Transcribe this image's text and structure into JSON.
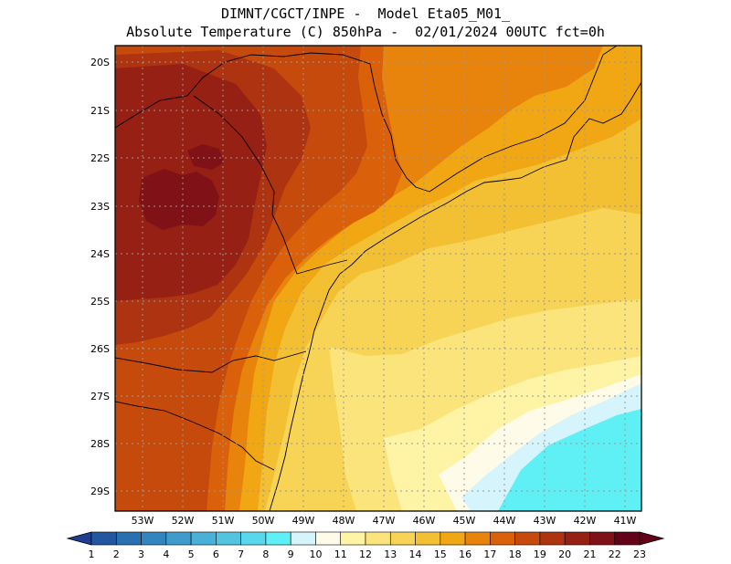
{
  "title": {
    "line1": "DIMNT/CGCT/INPE -  Model Eta05_M01_",
    "line2": "Absolute Temperature (C) 850hPa -  02/01/2024 00UTC fct=0h"
  },
  "lat_labels": [
    "20S",
    "21S",
    "22S",
    "23S",
    "24S",
    "25S",
    "26S",
    "27S",
    "28S",
    "29S"
  ],
  "lon_labels": [
    "53W",
    "52W",
    "51W",
    "50W",
    "49W",
    "48W",
    "47W",
    "46W",
    "45W",
    "44W",
    "43W",
    "42W",
    "41W"
  ],
  "colorbar": {
    "labels": [
      "1",
      "2",
      "3",
      "4",
      "5",
      "6",
      "7",
      "8",
      "9",
      "10",
      "11",
      "12",
      "13",
      "14",
      "15",
      "16",
      "17",
      "18",
      "19",
      "20",
      "21",
      "22",
      "23"
    ],
    "colors": [
      "#1f3e8f",
      "#22569f",
      "#2a6fb0",
      "#3385c0",
      "#3e9bcc",
      "#49b0d6",
      "#52c4e0",
      "#58d8ec",
      "#5ff0f6",
      "#d6f4fb",
      "#fffbe9",
      "#fff3a6",
      "#fbe47b",
      "#f7d456",
      "#f3bf33",
      "#f1a714",
      "#e8840b",
      "#da6109",
      "#c74a0d",
      "#ae3310",
      "#962013",
      "#7f1117",
      "#620118"
    ]
  },
  "field_regions": [
    {
      "name": "temp-22-plus",
      "temp": "22+",
      "color": "#7f1117"
    },
    {
      "name": "temp-21",
      "temp": "21",
      "color": "#962013"
    },
    {
      "name": "temp-20",
      "temp": "20",
      "color": "#ae3310"
    },
    {
      "name": "temp-19",
      "temp": "19",
      "color": "#c74a0d"
    },
    {
      "name": "temp-18",
      "temp": "18",
      "color": "#da6109"
    },
    {
      "name": "temp-17",
      "temp": "17",
      "color": "#e8840b"
    },
    {
      "name": "temp-16",
      "temp": "16",
      "color": "#f1a714"
    },
    {
      "name": "temp-15",
      "temp": "15",
      "color": "#f3bf33"
    },
    {
      "name": "temp-14",
      "temp": "14",
      "color": "#f7d456"
    },
    {
      "name": "temp-13",
      "temp": "13",
      "color": "#fbe47b"
    },
    {
      "name": "temp-12",
      "temp": "12",
      "color": "#fff3a6"
    },
    {
      "name": "temp-11",
      "temp": "11",
      "color": "#fffbe9"
    },
    {
      "name": "temp-10",
      "temp": "10",
      "color": "#d6f4fb"
    },
    {
      "name": "temp-9",
      "temp": "9",
      "color": "#5ff0f6"
    }
  ]
}
